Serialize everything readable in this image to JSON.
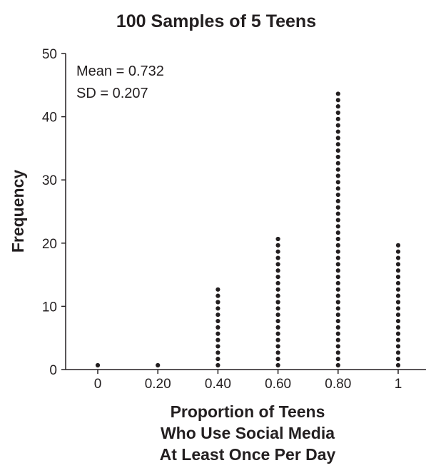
{
  "chart_data": {
    "type": "dot",
    "title": "100 Samples of 5 Teens",
    "xlabel_lines": [
      "Proportion of Teens",
      "Who Use Social Media",
      "At Least Once Per Day"
    ],
    "ylabel": "Frequency",
    "ylim": [
      0,
      50
    ],
    "y_ticks": [
      "0",
      "10",
      "20",
      "30",
      "40",
      "50"
    ],
    "categories": [
      "0",
      "0.20",
      "0.40",
      "0.60",
      "0.80",
      "1"
    ],
    "x_values": [
      0,
      0.2,
      0.4,
      0.6,
      0.8,
      1
    ],
    "values": [
      1,
      1,
      13,
      21,
      44,
      20
    ],
    "stats": {
      "mean": "Mean = 0.732",
      "sd": "SD = 0.207"
    },
    "grid": false,
    "dot_color": "#231f20"
  }
}
